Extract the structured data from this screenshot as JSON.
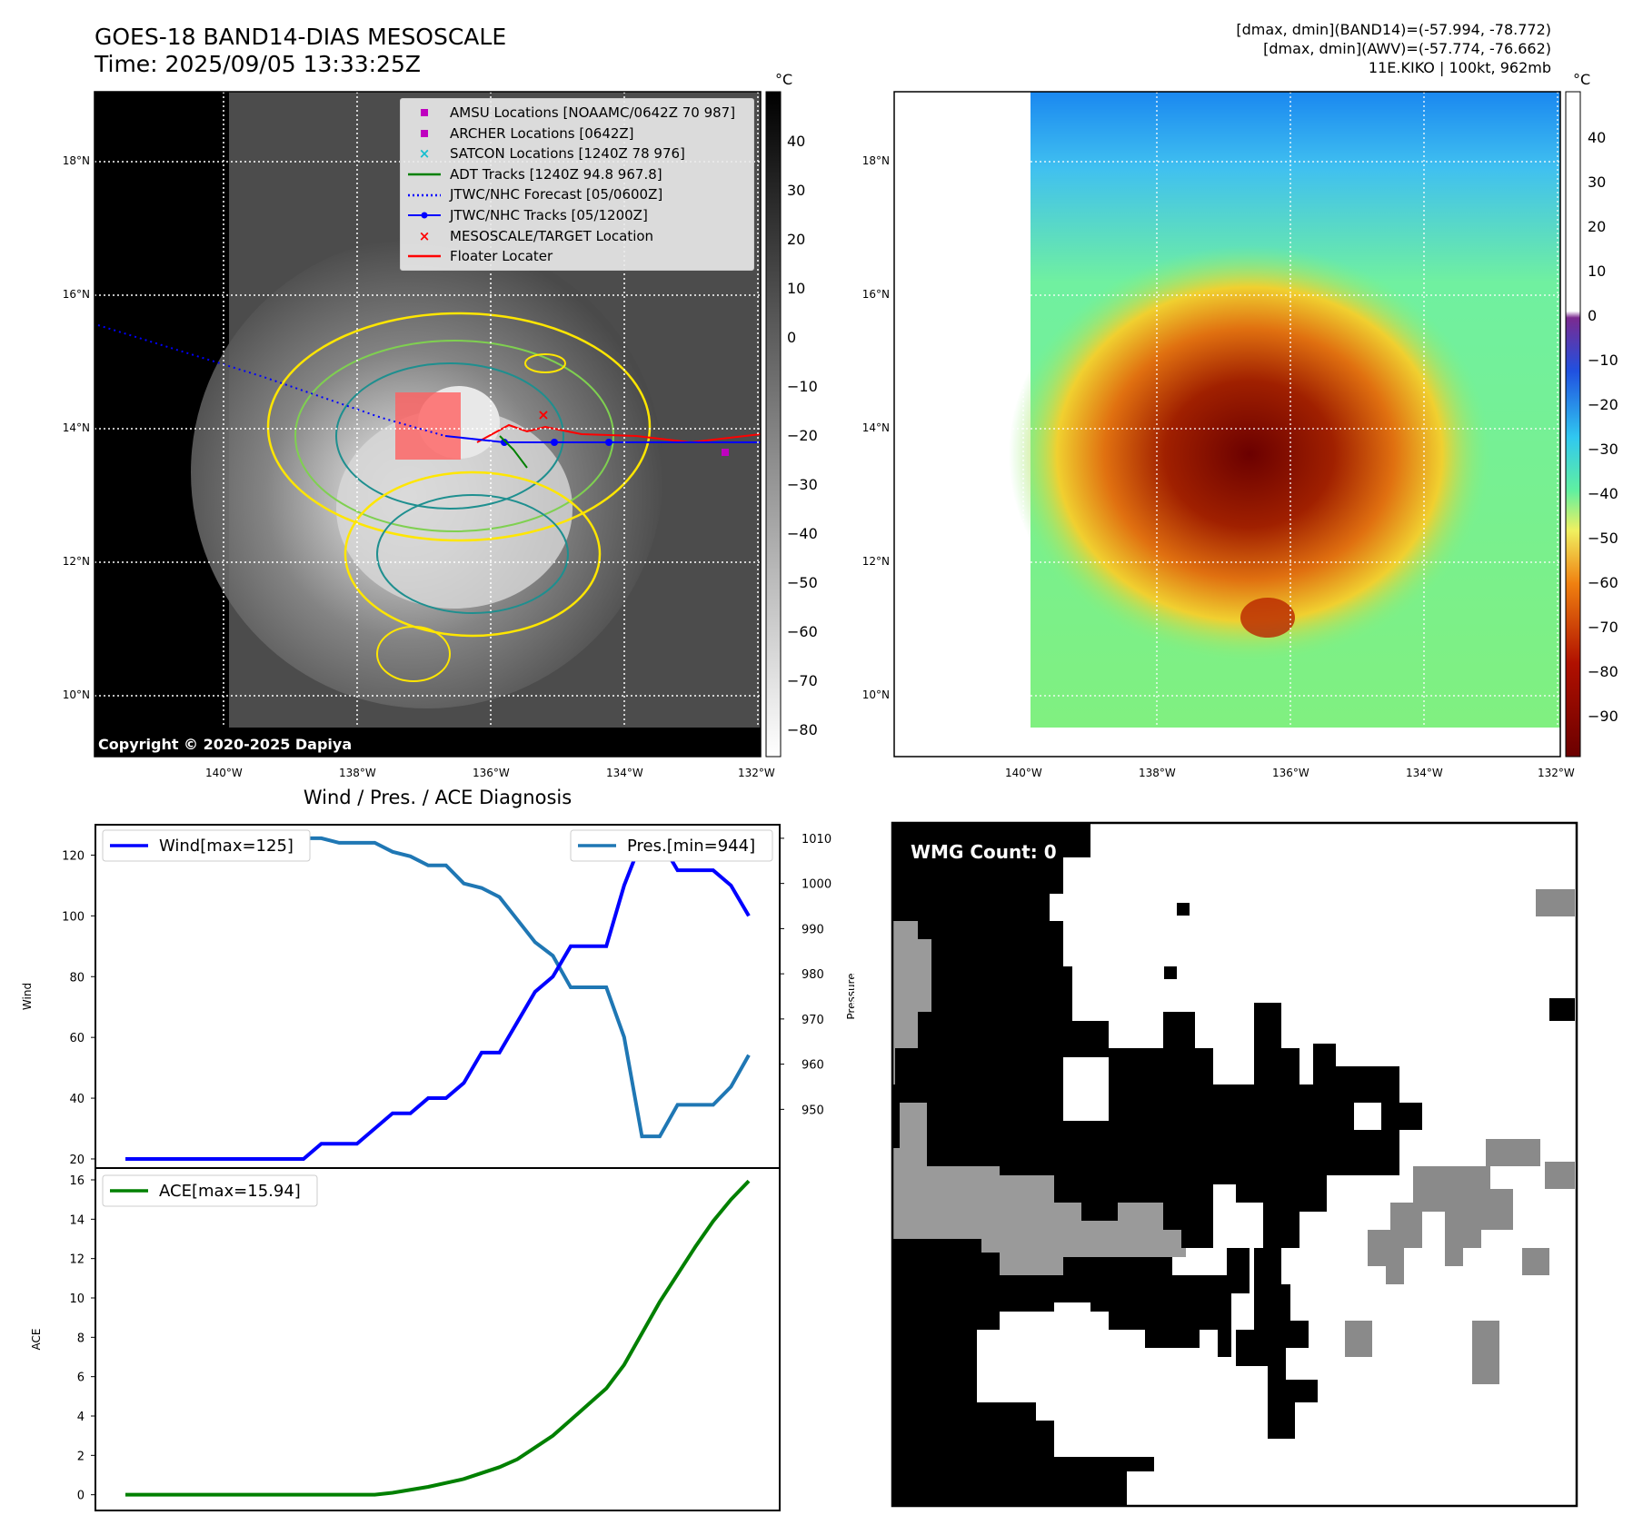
{
  "header": {
    "title_line1": "GOES-18 BAND14-DIAS MESOSCALE",
    "title_line2": "Time: 2025/09/05 13:33:25Z",
    "stats_line1": "[dmax, dmin](BAND14)=(-57.994, -78.772)",
    "stats_line2": "[dmax, dmin](AWV)=(-57.774, -76.662)",
    "stats_line3": "11E.KIKO | 100kt, 962mb"
  },
  "ir_panel": {
    "copyright": "Copyright © 2020-2025 Dapiya",
    "lat_labels": [
      "18°N",
      "16°N",
      "14°N",
      "12°N",
      "10°N"
    ],
    "lon_labels": [
      "140°W",
      "138°W",
      "136°W",
      "134°W",
      "132°W"
    ],
    "colorbar_unit": "°C",
    "colorbar_ticks": [
      "40",
      "30",
      "20",
      "10",
      "0",
      "−10",
      "−20",
      "−30",
      "−40",
      "−50",
      "−60",
      "−70",
      "−80"
    ],
    "legend": [
      {
        "label": "AMSU Locations [NOAAMC/0642Z 70 987]",
        "marker": "square",
        "color": "#bf00bf"
      },
      {
        "label": "ARCHER Locations [0642Z]",
        "marker": "square",
        "color": "#bf00bf"
      },
      {
        "label": "SATCON Locations [1240Z 78 976]",
        "marker": "x",
        "color": "#17becf"
      },
      {
        "label": "ADT Tracks [1240Z 94.8 967.8]",
        "marker": "line",
        "color": "#008000"
      },
      {
        "label": "JTWC/NHC Forecast [05/0600Z]",
        "marker": "dotted",
        "color": "#0000ff"
      },
      {
        "label": "JTWC/NHC Tracks [05/1200Z]",
        "marker": "line-dot",
        "color": "#0000ff"
      },
      {
        "label": "MESOSCALE/TARGET Location",
        "marker": "x",
        "color": "#ff0000"
      },
      {
        "label": "Floater Locater",
        "marker": "line",
        "color": "#ff0000"
      }
    ]
  },
  "awv_panel": {
    "lat_labels": [
      "18°N",
      "16°N",
      "14°N",
      "12°N",
      "10°N"
    ],
    "lon_labels": [
      "140°W",
      "138°W",
      "136°W",
      "134°W",
      "132°W"
    ],
    "colorbar_unit": "°C",
    "colorbar_ticks": [
      "40",
      "30",
      "20",
      "10",
      "0",
      "−10",
      "−20",
      "−30",
      "−40",
      "−50",
      "−60",
      "−70",
      "−80",
      "−90"
    ]
  },
  "wmg_panel": {
    "count_label": "WMG Count: 0"
  },
  "chart_data": [
    {
      "type": "line",
      "title": "Wind / Pres. / ACE Diagnosis",
      "xlabel": "",
      "ylabel": "Wind",
      "ylabel_right": "Pressure",
      "ylim": [
        17,
        130
      ],
      "ylim_right": [
        937,
        1013
      ],
      "yticks": [
        20,
        40,
        60,
        80,
        100,
        120
      ],
      "yticks_right": [
        950,
        960,
        970,
        980,
        990,
        1000,
        1010
      ],
      "series": [
        {
          "name": "Wind[max=125]",
          "color": "#0000ff",
          "axis": "left",
          "values": [
            20,
            20,
            20,
            20,
            20,
            20,
            20,
            20,
            20,
            20,
            20,
            25,
            25,
            25,
            30,
            35,
            35,
            40,
            40,
            45,
            55,
            55,
            65,
            75,
            80,
            90,
            90,
            90,
            110,
            125,
            125,
            115,
            115,
            115,
            110,
            100
          ]
        },
        {
          "name": "Pres.[min=944]",
          "color": "#1f77b4",
          "axis": "right",
          "values": [
            1010,
            1010,
            1010,
            1010,
            1010,
            1010,
            1010,
            1010,
            1010,
            1010,
            1010,
            1010,
            1009,
            1009,
            1009,
            1007,
            1006,
            1004,
            1004,
            1000,
            999,
            997,
            992,
            987,
            984,
            977,
            977,
            977,
            966,
            944,
            944,
            951,
            951,
            951,
            955,
            962
          ]
        }
      ]
    },
    {
      "type": "line",
      "xlabel": "",
      "ylabel": "ACE",
      "ylim": [
        -0.8,
        16.6
      ],
      "yticks": [
        0,
        2,
        4,
        6,
        8,
        10,
        12,
        14,
        16
      ],
      "series": [
        {
          "name": "ACE[max=15.94]",
          "color": "#008000",
          "values": [
            0,
            0,
            0,
            0,
            0,
            0,
            0,
            0,
            0,
            0,
            0,
            0,
            0,
            0,
            0,
            0.1,
            0.25,
            0.4,
            0.6,
            0.8,
            1.1,
            1.4,
            1.8,
            2.4,
            3.0,
            3.8,
            4.6,
            5.4,
            6.6,
            8.2,
            9.8,
            11.2,
            12.6,
            13.9,
            15.0,
            15.94
          ]
        }
      ]
    }
  ]
}
